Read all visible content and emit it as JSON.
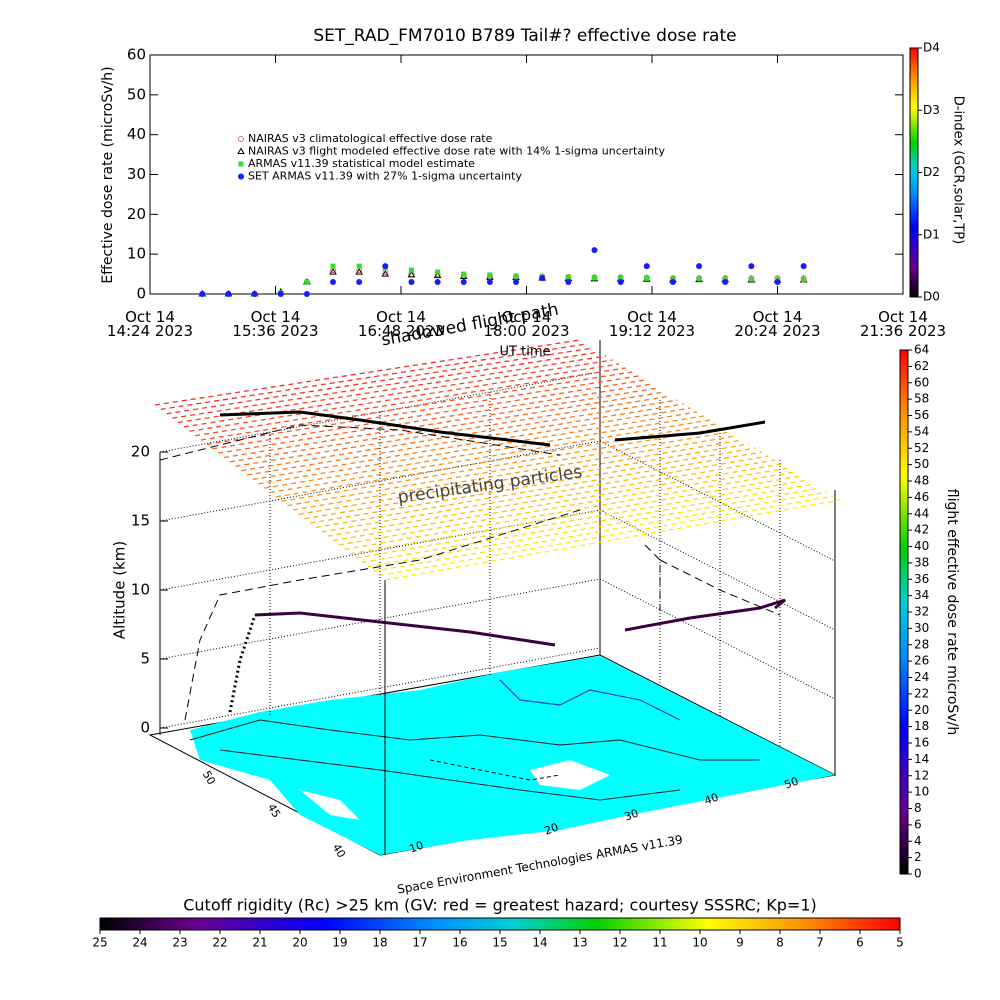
{
  "chart_data": [
    {
      "type": "scatter",
      "title": "SET_RAD_FM7010  B789 Tail#? effective dose rate",
      "ylabel": "Effective dose rate (microSv/h)",
      "xlim": [
        "14:24",
        "21:36"
      ],
      "xticks": [
        {
          "value": "14:24",
          "label": "Oct 14\n14:24 2023"
        },
        {
          "value": "15:36",
          "label": "Oct 14\n15:36 2023"
        },
        {
          "value": "16:48",
          "label": "Oct 14\n16:48 2023"
        },
        {
          "value": "18:00",
          "label": "Oct 14\n18:00 2023"
        },
        {
          "value": "19:12",
          "label": "Oct 14\n19:12 2023"
        },
        {
          "value": "20:24",
          "label": "Oct 14\n20:24 2023"
        },
        {
          "value": "21:36",
          "label": "Oct 14\n21:36 2023"
        }
      ],
      "ylim": [
        0,
        60
      ],
      "yticks": [
        0,
        10,
        20,
        30,
        40,
        50,
        60
      ],
      "x": [
        "14:54",
        "15:09",
        "15:24",
        "15:39",
        "15:54",
        "16:09",
        "16:24",
        "16:39",
        "16:54",
        "17:09",
        "17:24",
        "17:39",
        "17:54",
        "18:09",
        "18:24",
        "18:39",
        "18:54",
        "19:09",
        "19:24",
        "19:39",
        "19:54",
        "20:09",
        "20:24",
        "20:39"
      ],
      "series": [
        {
          "name": "NAIRAS v3 climatological effective dose rate",
          "color": "#e07070",
          "marker": "circle-open",
          "values": [
            0,
            0,
            0,
            0.2,
            3,
            6,
            6,
            5.5,
            5,
            5,
            4.8,
            4.6,
            4.5,
            4.4,
            4.3,
            4.2,
            4.2,
            4.1,
            4,
            4,
            4,
            4,
            4,
            4
          ]
        },
        {
          "name": "NAIRAS v3 flight modeled effective dose rate with 14% 1-sigma uncertainty",
          "color": "#000000",
          "marker": "triangle",
          "values": [
            0,
            0,
            0,
            0.5,
            3,
            5.5,
            5.5,
            5,
            4.8,
            4.6,
            4.4,
            4.2,
            4.1,
            4,
            3.9,
            3.8,
            3.8,
            3.7,
            3.6,
            3.6,
            3.6,
            3.5,
            3.5,
            3.5
          ]
        },
        {
          "name": "ARMAS v11.39 statistical model estimate",
          "color": "#33dd33",
          "marker": "square",
          "values": [
            0,
            0,
            0,
            0.3,
            3,
            7,
            7,
            6.5,
            6,
            5.5,
            5,
            4.8,
            4.5,
            4.3,
            4.2,
            4,
            4,
            3.9,
            3.8,
            3.8,
            3.7,
            3.7,
            3.6,
            3.6
          ]
        },
        {
          "name": "SET ARMAS v11.39 with 27% 1-sigma uncertainty",
          "color": "#1a1aff",
          "marker": "circle",
          "values": [
            0,
            0,
            0,
            0,
            0,
            3,
            3,
            7,
            3,
            3,
            3,
            3,
            3,
            4,
            3,
            11,
            3,
            7,
            3,
            7,
            3,
            7,
            3,
            7
          ]
        }
      ],
      "colorbar": {
        "label": "D-index (GCR,solar,TP)",
        "lim": [
          0,
          4
        ],
        "ticks": [
          {
            "value": 0,
            "label": "D0"
          },
          {
            "value": 1,
            "label": "D1"
          },
          {
            "value": 2,
            "label": "D2"
          },
          {
            "value": 3,
            "label": "D3"
          },
          {
            "value": 4,
            "label": "D4"
          }
        ]
      }
    },
    {
      "type": "surface3d",
      "annotation": "shadowed flight path",
      "xlabel": "UT time",
      "zlabel": "Altitude (km)",
      "zlim": [
        0,
        20
      ],
      "zticks": [
        0,
        5,
        10,
        15,
        20
      ],
      "layer_label": "precipitating particles",
      "credit": "Space Environment Technologies ARMAS v11.39",
      "lat_labels": [
        "40",
        "45",
        "50"
      ],
      "lon_labels": [
        "10",
        "20",
        "30",
        "40",
        "50"
      ]
    },
    {
      "type": "colorbar",
      "orientation": "vertical",
      "label": "flight effective dose rate microSv/h",
      "lim": [
        0,
        64
      ],
      "ticks": [
        0,
        2,
        4,
        6,
        8,
        10,
        12,
        14,
        16,
        18,
        20,
        22,
        24,
        26,
        28,
        30,
        32,
        34,
        36,
        38,
        40,
        42,
        44,
        46,
        48,
        50,
        52,
        54,
        56,
        58,
        60,
        62,
        64
      ]
    },
    {
      "type": "colorbar",
      "orientation": "horizontal",
      "label": "Cutoff rigidity (Rc) >25 km (GV: red = greatest hazard; courtesy SSSRC; Kp=1)",
      "lim": [
        25,
        5
      ],
      "ticks": [
        25,
        24,
        23,
        22,
        21,
        20,
        19,
        18,
        17,
        16,
        15,
        14,
        13,
        12,
        11,
        10,
        9,
        8,
        7,
        6,
        5
      ]
    }
  ]
}
